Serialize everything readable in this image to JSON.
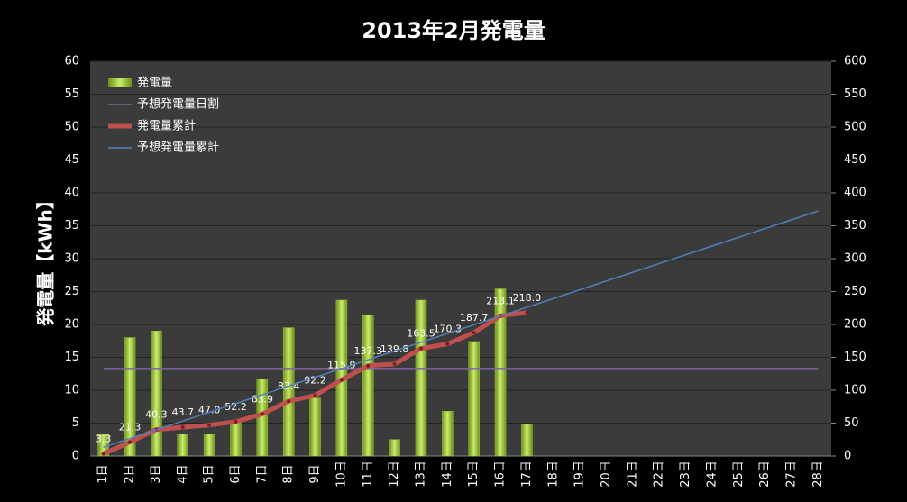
{
  "chart_data": {
    "type": "combo",
    "title": "2013年2月発電量",
    "y_label": "発電量【kWh】",
    "categories": [
      "1日",
      "2日",
      "3日",
      "4日",
      "5日",
      "6日",
      "7日",
      "8日",
      "9日",
      "10日",
      "11日",
      "12日",
      "13日",
      "14日",
      "15日",
      "16日",
      "17日",
      "18日",
      "19日",
      "20日",
      "21日",
      "22日",
      "23日",
      "24日",
      "25日",
      "26日",
      "27日",
      "28日"
    ],
    "series": [
      {
        "name": "発電量",
        "type": "bar",
        "color": "#9acd32",
        "axis": "y",
        "values": [
          3.3,
          18.0,
          19.0,
          3.4,
          3.3,
          5.2,
          11.7,
          19.5,
          8.8,
          23.7,
          21.4,
          2.5,
          23.7,
          6.8,
          17.4,
          25.4,
          4.9,
          null,
          null,
          null,
          null,
          null,
          null,
          null,
          null,
          null,
          null,
          null
        ]
      },
      {
        "name": "予想発電量日割",
        "type": "line",
        "color": "#8064a2",
        "axis": "y",
        "values": [
          13.3,
          13.3,
          13.3,
          13.3,
          13.3,
          13.3,
          13.3,
          13.3,
          13.3,
          13.3,
          13.3,
          13.3,
          13.3,
          13.3,
          13.3,
          13.3,
          13.3,
          13.3,
          13.3,
          13.3,
          13.3,
          13.3,
          13.3,
          13.3,
          13.3,
          13.3,
          13.3,
          13.3
        ]
      },
      {
        "name": "発電量累計",
        "type": "line",
        "color": "#c0504d",
        "axis": "y2",
        "values": [
          3.3,
          21.3,
          40.3,
          43.7,
          47.0,
          52.2,
          63.9,
          83.4,
          92.2,
          115.9,
          137.3,
          139.8,
          163.5,
          170.3,
          187.7,
          213.1,
          218.0,
          null,
          null,
          null,
          null,
          null,
          null,
          null,
          null,
          null,
          null,
          null
        ],
        "value_labels": [
          "3.3",
          "21.3",
          "40.3",
          "43.7",
          "47.0",
          "52.2",
          "63.9",
          "83.4",
          "92.2",
          "115.9",
          "137.3",
          "139.8",
          "163.5",
          "170.3",
          "187.7",
          "213.1",
          "218.0",
          null,
          null,
          null,
          null,
          null,
          null,
          null,
          null,
          null,
          null,
          null
        ]
      },
      {
        "name": "予想発電量累計",
        "type": "line",
        "color": "#4f81bd",
        "axis": "y2",
        "values": [
          13.3,
          26.6,
          39.9,
          53.2,
          66.5,
          79.8,
          93.1,
          106.4,
          119.7,
          133.0,
          146.3,
          159.6,
          172.9,
          186.2,
          199.5,
          212.8,
          226.1,
          239.4,
          252.7,
          266.0,
          279.3,
          292.6,
          305.9,
          319.2,
          332.5,
          345.8,
          359.1,
          372.4
        ]
      }
    ],
    "ylim": [
      0,
      60
    ],
    "yticks": [
      0,
      5,
      10,
      15,
      20,
      25,
      30,
      35,
      40,
      45,
      50,
      55,
      60
    ],
    "y2lim": [
      0,
      600
    ],
    "y2ticks": [
      0,
      50,
      100,
      150,
      200,
      250,
      300,
      350,
      400,
      450,
      500,
      550,
      600
    ],
    "grid": true,
    "legend": "top-left"
  }
}
